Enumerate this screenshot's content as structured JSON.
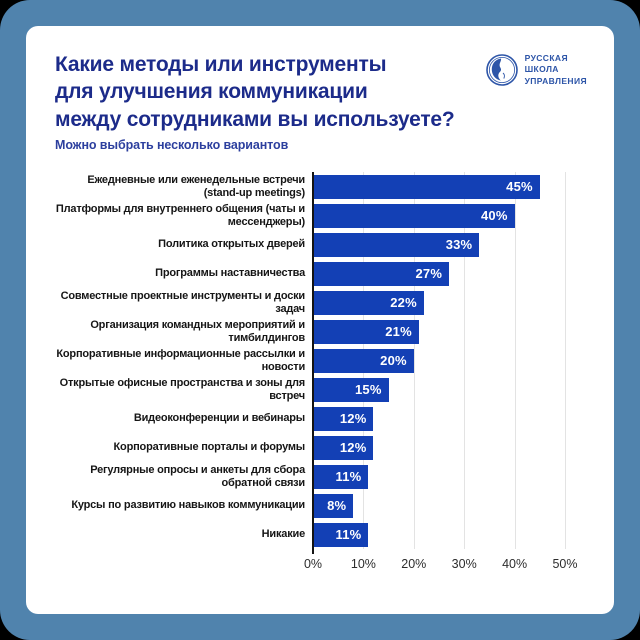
{
  "header": {
    "title_lines": [
      "Какие методы или инструменты",
      "для улучшения коммуникации",
      "между сотрудниками вы используете?"
    ],
    "subtitle": "Можно выбрать несколько вариантов"
  },
  "logo": {
    "lines": [
      "РУССКАЯ",
      "ШКОЛА",
      "УПРАВЛЕНИЯ"
    ],
    "emblem": "face-in-circle-icon"
  },
  "colors": {
    "frame": "#5083ad",
    "card": "#ffffff",
    "bar": "#1340b5",
    "title": "#1c2b8a",
    "subtitle": "#2c3f9e",
    "logo": "#2d55a8",
    "gridline": "#e3e3e3",
    "axis_line": "#141414"
  },
  "chart_data": {
    "type": "bar",
    "orientation": "horizontal",
    "categories": [
      "Ежедневные или еженедельные встречи (stand-up meetings)",
      "Платформы для внутреннего общения (чаты и мессенджеры)",
      "Политика открытых дверей",
      "Программы наставничества",
      "Совместные проектные инструменты и доски задач",
      "Организация командных мероприятий и тимбилдингов",
      "Корпоративные информационные рассылки и новости",
      "Открытые офисные пространства и зоны для встреч",
      "Видеоконференции и вебинары",
      "Корпоративные порталы и форумы",
      "Регулярные опросы и анкеты для сбора обратной связи",
      "Курсы по развитию навыков коммуникации",
      "Никакие"
    ],
    "values": [
      45,
      40,
      33,
      27,
      22,
      21,
      20,
      15,
      12,
      12,
      11,
      8,
      11
    ],
    "value_labels": [
      "45%",
      "40%",
      "33%",
      "27%",
      "22%",
      "21%",
      "20%",
      "15%",
      "12%",
      "12%",
      "11%",
      "8%",
      "11%"
    ],
    "xticks": [
      "0%",
      "10%",
      "20%",
      "30%",
      "40%",
      "50%"
    ],
    "xtick_values": [
      0,
      10,
      20,
      30,
      40,
      50
    ],
    "xlim": [
      0,
      50
    ],
    "grid": "vertical",
    "value_labels_position": "inside-end"
  }
}
